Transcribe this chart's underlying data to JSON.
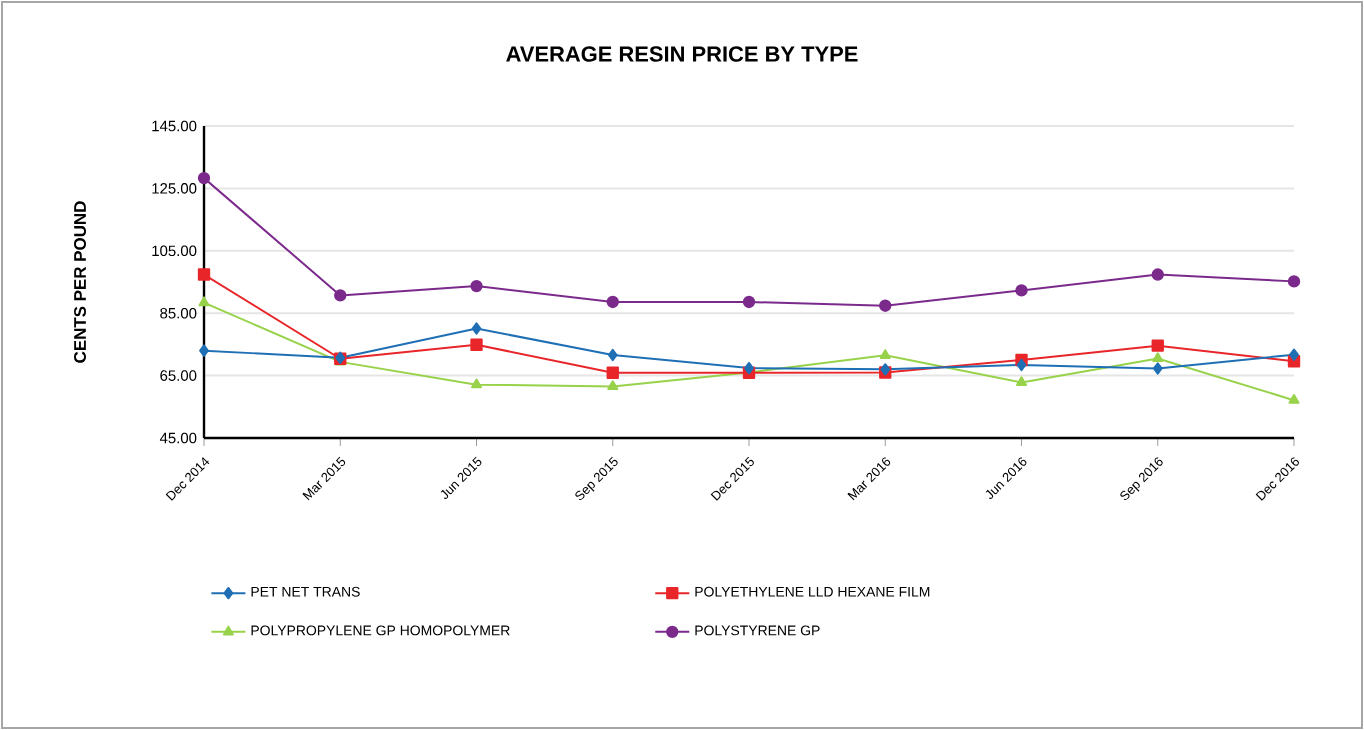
{
  "chart_data": {
    "type": "line",
    "title": "AVERAGE RESIN PRICE BY TYPE",
    "ylabel": "CENTS PER POUND",
    "categories": [
      "Dec 2014",
      "Mar 2015",
      "Jun 2015",
      "Sep 2015",
      "Dec 2015",
      "Mar 2016",
      "Jun 2016",
      "Sep 2016",
      "Dec 2016"
    ],
    "series": [
      {
        "name": "PET NET TRANS",
        "color": "#1f6fb5",
        "marker": "diamond",
        "values": [
          73.0,
          70.7,
          80.1,
          71.6,
          67.4,
          67.0,
          68.4,
          67.3,
          71.7
        ]
      },
      {
        "name": "POLYETHYLENE LLD HEXANE FILM",
        "color": "#e8262a",
        "marker": "square",
        "values": [
          97.4,
          70.4,
          74.9,
          65.9,
          65.9,
          66.0,
          70.0,
          74.6,
          69.6
        ]
      },
      {
        "name": "POLYPROPYLENE GP HOMOPOLYMER",
        "color": "#97d24a",
        "marker": "triangle",
        "values": [
          88.4,
          69.4,
          62.1,
          61.5,
          66.0,
          71.5,
          62.8,
          70.5,
          57.1
        ]
      },
      {
        "name": "POLYSTYRENE GP",
        "color": "#7b2a8c",
        "marker": "circle",
        "values": [
          128.3,
          90.7,
          93.7,
          88.6,
          88.6,
          87.4,
          92.3,
          97.4,
          95.2
        ]
      }
    ],
    "ylim": [
      45,
      145
    ],
    "yticks": [
      {
        "value": 45,
        "label": "45.00"
      },
      {
        "value": 65,
        "label": "65.00"
      },
      {
        "value": 85,
        "label": "85.00"
      },
      {
        "value": 105,
        "label": "105.00"
      },
      {
        "value": 125,
        "label": "125.00"
      },
      {
        "value": 145,
        "label": "145.00"
      }
    ],
    "grid": "y",
    "legend": "bottom",
    "line_style": "solid"
  }
}
